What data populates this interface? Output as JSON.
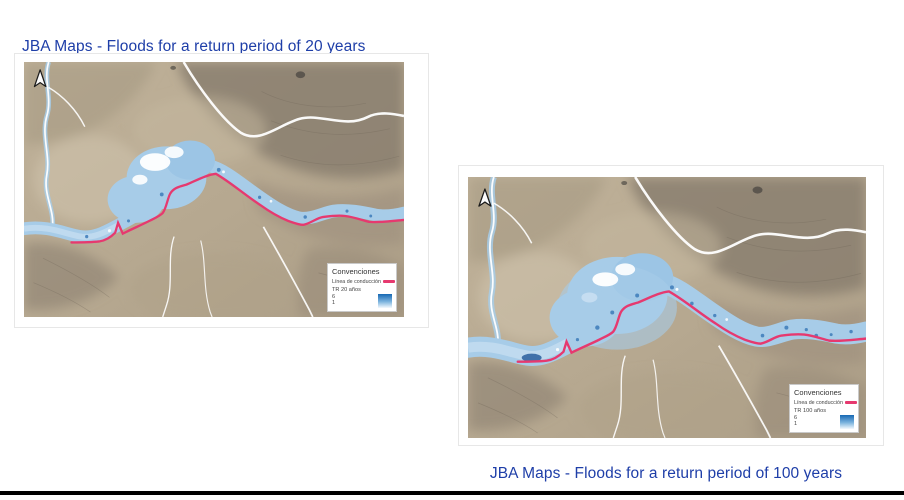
{
  "figures": [
    {
      "title": "JBA Maps - Floods for a return period of 20 years",
      "legend": {
        "header": "Convenciones",
        "line_label": "Línea de conducción",
        "tr_label": "TR 20 años",
        "scale_max": "6",
        "scale_min": "1"
      }
    },
    {
      "title": "JBA Maps - Floods for a return period of 100 years",
      "legend": {
        "header": "Convenciones",
        "line_label": "Línea de conducción",
        "tr_label": "TR 100 años",
        "scale_max": "6",
        "scale_min": "1"
      }
    }
  ],
  "colors": {
    "title_text": "#1e3ea8",
    "terrain_base_1": "#b6a890",
    "terrain_base_2": "#c0b29a",
    "terrain_dark": "#877c6d",
    "terrain_ridge": "#9a8d7b",
    "terrain_light": "#cfc3ab",
    "stream": "#ffffff",
    "flood": "#a7cce8",
    "flood_pale": "#c9dff2",
    "flood_dark": "#3d7cba",
    "flood_darker": "#2a5f9e",
    "conduction_line": "#e6396f",
    "legend_border": "#c9c9c9",
    "scale_gradient_top": "#1668b3",
    "bottom_rule": "#000000"
  }
}
